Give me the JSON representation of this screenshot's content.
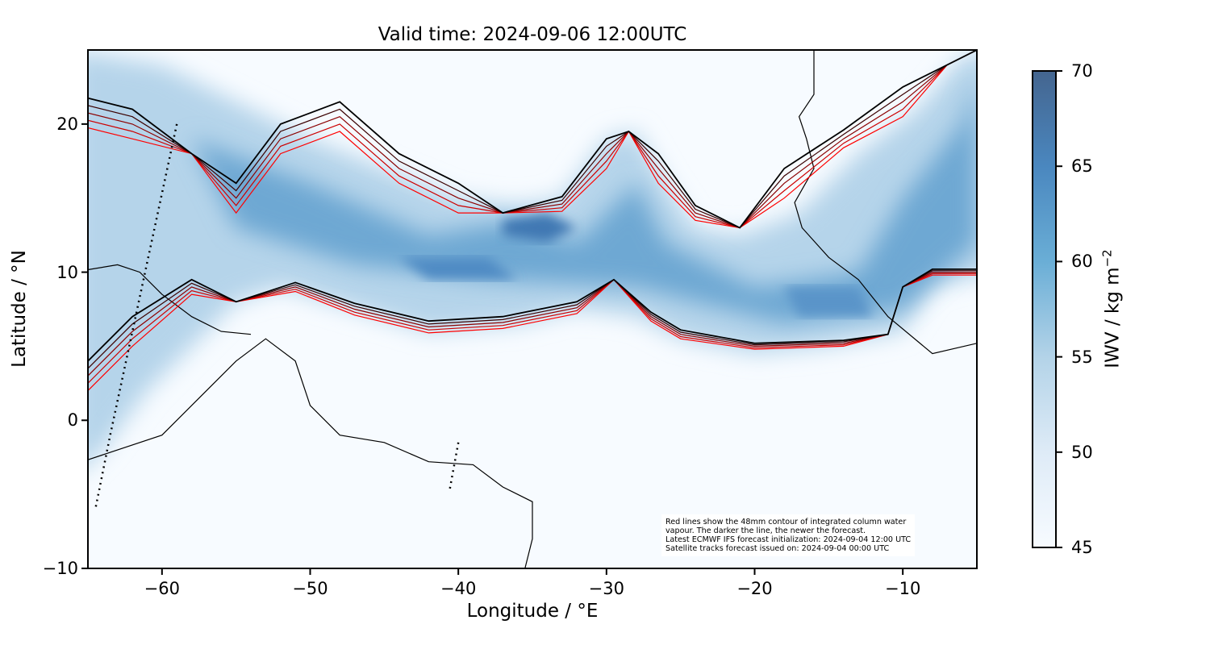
{
  "title": "Valid time: 2024-09-06 12:00UTC",
  "xlabel": "Longitude / °E",
  "ylabel": "Latitude / °N",
  "colorbar_label": "IWV / kg m",
  "colorbar_label_sup": "−2",
  "note": [
    "Red lines show the 48mm contour of integrated column water",
    "vapour. The darker the line, the newer the forecast.",
    "Latest ECMWF IFS forecast initialization: 2024-09-04 12:00 UTC",
    "Satellite tracks forecast issued on: 2024-09-04 00:00 UTC"
  ],
  "chart_data": {
    "type": "heatmap",
    "title": "Valid time: 2024-09-06 12:00UTC",
    "xlabel": "Longitude / °E",
    "ylabel": "Latitude / °N",
    "xlim": [
      -65,
      -5
    ],
    "ylim": [
      -10,
      25
    ],
    "xticks": [
      "−60",
      "−50",
      "−40",
      "−30",
      "−20",
      "−10"
    ],
    "xtick_values": [
      -60,
      -50,
      -40,
      -30,
      -20,
      -10
    ],
    "yticks": [
      "−10",
      "0",
      "10",
      "20"
    ],
    "ytick_values": [
      -10,
      0,
      10,
      20
    ],
    "colorbar": {
      "range": [
        45,
        70
      ],
      "ticks": [
        "45",
        "50",
        "55",
        "60",
        "65",
        "70"
      ],
      "tick_values": [
        45,
        50,
        55,
        60,
        65,
        70
      ],
      "colormap": "Blues"
    },
    "contour_level_mm": 48,
    "contour_colors": [
      "#ff0000",
      "#cc0000",
      "#8b0000",
      "#3a0000",
      "#000000"
    ]
  }
}
